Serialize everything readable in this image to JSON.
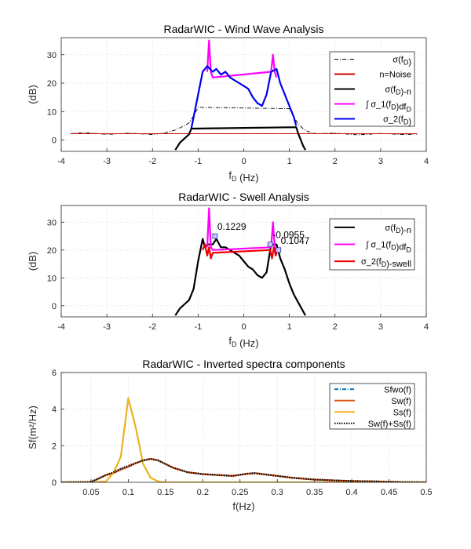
{
  "chart_data": [
    {
      "type": "line",
      "title": "RadarWIC - Wind Wave Analysis",
      "xlabel": "f_D (Hz)",
      "ylabel": "(dB)",
      "xlim": [
        -4,
        4
      ],
      "ylim": [
        -4,
        36
      ],
      "xticks": [
        -4,
        -3,
        -2,
        -1,
        0,
        1,
        2,
        3,
        4
      ],
      "yticks": [
        0,
        10,
        20,
        30
      ],
      "grid": true,
      "legend_position": "top-right",
      "legend": [
        "σ(f_D)",
        "n=Noise",
        "σ(f_D)-n",
        "∫ σ_1(f_D)df_D",
        "σ_2(f_D)"
      ],
      "series": [
        {
          "name": "σ(f_D)",
          "color": "#000000",
          "style": "dash-dot",
          "x": [
            -3.8,
            -3.5,
            -3.0,
            -2.5,
            -2.0,
            -1.7,
            -1.5,
            -1.3,
            -1.2,
            -1.1,
            -1.0,
            1.0,
            1.1,
            1.2,
            1.3,
            1.4,
            1.6,
            2.0,
            2.5,
            3.0,
            3.5,
            3.8
          ],
          "y": [
            2.2,
            2.6,
            2.0,
            2.4,
            1.9,
            2.6,
            3.5,
            5.0,
            6.0,
            8.5,
            11.5,
            11.0,
            8.0,
            5.5,
            4.0,
            3.0,
            2.2,
            2.4,
            1.8,
            2.3,
            1.9,
            2.1
          ]
        },
        {
          "name": "n=Noise",
          "color": "#cc0000",
          "style": "solid",
          "x": [
            -3.8,
            3.8
          ],
          "y": [
            2.2,
            2.2
          ]
        },
        {
          "name": "σ(f_D)-n",
          "color": "#000000",
          "style": "solid",
          "x": [
            -1.5,
            -1.4,
            -1.3,
            -1.2,
            -1.15,
            1.15,
            1.2,
            1.25,
            1.3,
            1.35
          ],
          "y": [
            -3.5,
            -1.0,
            0.5,
            2.0,
            4.0,
            4.5,
            2.0,
            0.0,
            -2.0,
            -3.5
          ]
        },
        {
          "name": "∫ σ_1(f_D)df_D",
          "color": "#ff00ff",
          "style": "solid",
          "x": [
            -0.8,
            -0.76,
            -0.72,
            -0.68,
            0.6,
            0.64,
            0.68,
            0.72
          ],
          "y": [
            24,
            35,
            24,
            22,
            24,
            30,
            24,
            22
          ]
        },
        {
          "name": "σ_2(f_D)",
          "color": "#0000ee",
          "style": "solid",
          "x": [
            -1.15,
            -1.05,
            -0.95,
            -0.9,
            -0.85,
            -0.8,
            -0.68,
            -0.6,
            -0.5,
            -0.4,
            -0.3,
            -0.2,
            -0.1,
            0.0,
            0.1,
            0.2,
            0.3,
            0.4,
            0.5,
            0.6,
            0.72,
            0.8,
            0.9,
            1.0,
            1.1,
            1.15
          ],
          "y": [
            4,
            12,
            20,
            24,
            25,
            26,
            24,
            25,
            23,
            24,
            22,
            21,
            20,
            19,
            18,
            15,
            13,
            12,
            16,
            24,
            25,
            20,
            16,
            12,
            8,
            5
          ]
        }
      ]
    },
    {
      "type": "line",
      "title": "RadarWIC - Swell Analysis",
      "xlabel": "f_D (Hz)",
      "ylabel": "(dB)",
      "xlim": [
        -4,
        4
      ],
      "ylim": [
        -4,
        36
      ],
      "xticks": [
        -4,
        -3,
        -2,
        -1,
        0,
        1,
        2,
        3,
        4
      ],
      "yticks": [
        0,
        10,
        20,
        30
      ],
      "grid": true,
      "legend_position": "top-right",
      "legend": [
        "σ(f_D)-n",
        "∫ σ_1(f_D)df_D",
        "σ_2(f_D)-swell"
      ],
      "annotations": [
        {
          "text": "0.1229",
          "x": -0.63,
          "y": 25
        },
        {
          "text": "-0.0955",
          "x": 0.58,
          "y": 22
        },
        {
          "text": "0.1047",
          "x": 0.76,
          "y": 20
        }
      ],
      "series": [
        {
          "name": "σ(f_D)-n",
          "color": "#000000",
          "style": "solid",
          "x": [
            -1.5,
            -1.4,
            -1.3,
            -1.2,
            -1.1,
            -1.0,
            -0.9,
            -0.85,
            -0.8,
            -0.68,
            -0.6,
            -0.5,
            -0.4,
            -0.3,
            -0.2,
            -0.1,
            0.0,
            0.1,
            0.2,
            0.3,
            0.4,
            0.5,
            0.6,
            0.72,
            0.8,
            0.9,
            1.0,
            1.1,
            1.2,
            1.3,
            1.35
          ],
          "y": [
            -3.5,
            -1.0,
            0.5,
            2.0,
            6.0,
            16.0,
            24.0,
            21.0,
            22.0,
            22.0,
            24.0,
            21.0,
            21.0,
            20.0,
            19.0,
            18.0,
            16.0,
            14.0,
            13.0,
            11.0,
            10.0,
            12.0,
            22.0,
            22.0,
            17.0,
            13.0,
            8.0,
            4.0,
            1.0,
            -2.0,
            -3.5
          ]
        },
        {
          "name": "∫ σ_1(f_D)df_D",
          "color": "#ff00ff",
          "style": "solid",
          "x": [
            -0.8,
            -0.76,
            -0.72,
            -0.68,
            0.6,
            0.64,
            0.68,
            0.72
          ],
          "y": [
            21,
            35,
            21,
            20,
            21,
            30,
            21,
            20
          ]
        },
        {
          "name": "σ_2(f_D)-swell",
          "color": "#ee0000",
          "style": "solid",
          "x": [
            -0.9,
            -0.85,
            -0.8,
            -0.76,
            -0.72,
            -0.68,
            0.58,
            0.62,
            0.66,
            0.7,
            0.74
          ],
          "y": [
            20,
            22,
            18,
            21,
            17,
            19,
            20,
            17,
            21,
            18,
            20
          ]
        }
      ]
    },
    {
      "type": "line",
      "title": "RadarWIC - Inverted spectra components",
      "xlabel": "f(Hz)",
      "ylabel": "Sf(m²/Hz)",
      "xlim": [
        0.01,
        0.5
      ],
      "ylim": [
        0,
        6
      ],
      "xticks": [
        0.05,
        0.1,
        0.15,
        0.2,
        0.25,
        0.3,
        0.35,
        0.4,
        0.45,
        0.5
      ],
      "yticks": [
        0,
        2,
        4,
        6
      ],
      "grid": true,
      "legend_position": "top-right",
      "legend": [
        "Sfwo(f)",
        "Sw(f)",
        "Ss(f)",
        "Sw(f)+Ss(f)"
      ],
      "series": [
        {
          "name": "Sfwo(f)",
          "color": "#0072bd",
          "style": "dash-dot",
          "x": [
            0.01,
            0.05,
            0.06,
            0.07,
            0.08,
            0.09,
            0.1,
            0.11,
            0.12,
            0.13,
            0.14,
            0.15,
            0.16,
            0.18,
            0.2,
            0.22,
            0.24,
            0.26,
            0.27,
            0.28,
            0.3,
            0.32,
            0.35,
            0.38,
            0.4,
            0.43,
            0.46,
            0.5
          ],
          "y": [
            0,
            0.02,
            0.2,
            0.4,
            0.5,
            0.7,
            0.85,
            1.05,
            1.2,
            1.28,
            1.2,
            1.0,
            0.8,
            0.55,
            0.45,
            0.4,
            0.35,
            0.47,
            0.5,
            0.45,
            0.35,
            0.25,
            0.15,
            0.1,
            0.07,
            0.05,
            0.02,
            0.0
          ]
        },
        {
          "name": "Sw(f)",
          "color": "#d95319",
          "style": "solid",
          "x": [
            0.01,
            0.05,
            0.06,
            0.07,
            0.08,
            0.09,
            0.1,
            0.11,
            0.12,
            0.13,
            0.14,
            0.15,
            0.16,
            0.18,
            0.2,
            0.22,
            0.24,
            0.26,
            0.27,
            0.28,
            0.3,
            0.32,
            0.35,
            0.38,
            0.4,
            0.43,
            0.46,
            0.5
          ],
          "y": [
            0,
            0.02,
            0.2,
            0.4,
            0.5,
            0.7,
            0.85,
            1.05,
            1.2,
            1.28,
            1.2,
            1.0,
            0.8,
            0.55,
            0.45,
            0.4,
            0.35,
            0.47,
            0.5,
            0.45,
            0.35,
            0.25,
            0.15,
            0.1,
            0.07,
            0.05,
            0.02,
            0.0
          ]
        },
        {
          "name": "Ss(f)",
          "color": "#edb120",
          "style": "solid",
          "x": [
            0.01,
            0.05,
            0.07,
            0.08,
            0.09,
            0.1,
            0.11,
            0.12,
            0.13,
            0.14,
            0.15,
            0.5
          ],
          "y": [
            0,
            0,
            0.05,
            0.5,
            1.4,
            4.6,
            3.0,
            1.0,
            0.25,
            0.05,
            0,
            0
          ]
        },
        {
          "name": "Sw(f)+Ss(f)",
          "color": "#000000",
          "style": "dotted",
          "x": [
            0.01,
            0.05,
            0.06,
            0.07,
            0.08,
            0.09,
            0.1,
            0.11,
            0.12,
            0.13,
            0.14,
            0.15,
            0.16,
            0.18,
            0.2,
            0.22,
            0.24,
            0.26,
            0.27,
            0.28,
            0.3,
            0.32,
            0.35,
            0.38,
            0.4,
            0.43,
            0.46,
            0.5
          ],
          "y": [
            0,
            0.02,
            0.2,
            0.4,
            0.55,
            0.75,
            0.9,
            1.05,
            1.2,
            1.28,
            1.2,
            1.0,
            0.8,
            0.55,
            0.45,
            0.4,
            0.35,
            0.47,
            0.5,
            0.45,
            0.35,
            0.25,
            0.15,
            0.1,
            0.07,
            0.05,
            0.02,
            0.0
          ]
        }
      ]
    }
  ]
}
